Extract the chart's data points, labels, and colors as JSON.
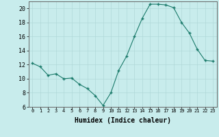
{
  "x": [
    0,
    1,
    2,
    3,
    4,
    5,
    6,
    7,
    8,
    9,
    10,
    11,
    12,
    13,
    14,
    15,
    16,
    17,
    18,
    19,
    20,
    21,
    22,
    23
  ],
  "y": [
    12.2,
    11.7,
    10.5,
    10.7,
    10.0,
    10.1,
    9.2,
    8.6,
    7.6,
    6.2,
    8.0,
    11.2,
    13.2,
    16.0,
    18.6,
    20.6,
    20.6,
    20.5,
    20.1,
    18.0,
    16.5,
    14.2,
    12.6,
    12.5
  ],
  "xlabel": "Humidex (Indice chaleur)",
  "ylim": [
    6,
    21
  ],
  "xlim": [
    -0.5,
    23.5
  ],
  "yticks": [
    6,
    8,
    10,
    12,
    14,
    16,
    18,
    20
  ],
  "xticks": [
    0,
    1,
    2,
    3,
    4,
    5,
    6,
    7,
    8,
    9,
    10,
    11,
    12,
    13,
    14,
    15,
    16,
    17,
    18,
    19,
    20,
    21,
    22,
    23
  ],
  "line_color": "#1a7a6a",
  "marker_color": "#1a7a6a",
  "bg_color": "#c8ecec",
  "grid_color": "#b0d8d8",
  "face_color": "#c8ecec",
  "xlabel_fontsize": 7,
  "tick_fontsize": 5,
  "ytick_fontsize": 6
}
